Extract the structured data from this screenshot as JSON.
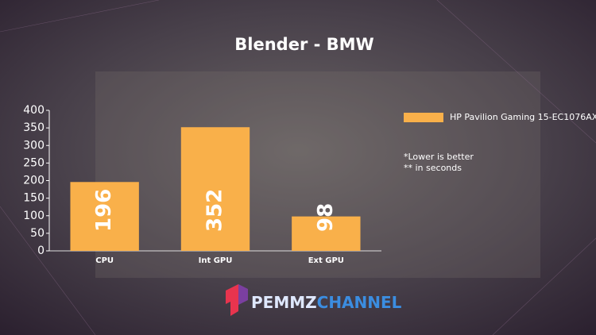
{
  "chart_data": {
    "type": "bar",
    "title": "Blender - BMW",
    "categories": [
      "CPU",
      "Int GPU",
      "Ext GPU"
    ],
    "series": [
      {
        "name": "HP Pavilion Gaming 15-EC1076AX",
        "color": "#f9b04a",
        "values": [
          196,
          352,
          98
        ]
      }
    ],
    "ylim": [
      0,
      400
    ],
    "yticks": [
      0,
      50,
      100,
      150,
      200,
      250,
      300,
      350,
      400
    ],
    "grid": false,
    "annotations": [
      "*Lower is better",
      "** in seconds"
    ]
  },
  "watermark": {
    "brand": "PEMMZ",
    "suffix": "CHANNEL"
  }
}
